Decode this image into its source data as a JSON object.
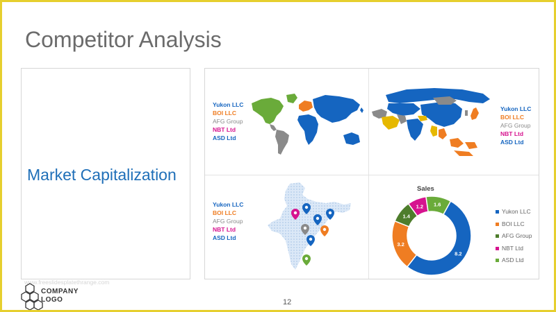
{
  "slide": {
    "title": "Competitor Analysis",
    "left_label": "Market Capitalization",
    "page_number": "12",
    "watermark": "www.freeslidesplatethrange.com"
  },
  "logo": {
    "line1": "COMPANY",
    "line2": "LOGO"
  },
  "legend_labels": {
    "yukon": "Yukon LLC",
    "boi": "BOI LLC",
    "afg": "AFG Group",
    "nbt": "NBT Ltd",
    "asd": "ASD Ltd"
  },
  "colors": {
    "yukon": "#1565c0",
    "boi": "#ef7d22",
    "afg": "#8a8a8a",
    "nbt": "#d6138f",
    "asd": "#6aab3a",
    "border": "#e6cf2e"
  },
  "icons": [
    "world-map-icon",
    "asia-map-icon",
    "india-map-icon",
    "map-pin-icon",
    "company-logo-icon"
  ],
  "chart_data": {
    "type": "pie",
    "title": "Sales",
    "categories": [
      "Yukon LLC",
      "BOI LLC",
      "AFG Group",
      "NBT Ltd",
      "ASD Ltd"
    ],
    "values": [
      8.2,
      3.2,
      1.4,
      1.2,
      1.6
    ],
    "labels": [
      "8.2",
      "3.2",
      "1.4",
      "1.2",
      "1.6"
    ],
    "colors": [
      "#1565c0",
      "#ef7d22",
      "#4e7d2c",
      "#d6138f",
      "#6aab3a"
    ],
    "legend_position": "right",
    "donut": true
  }
}
